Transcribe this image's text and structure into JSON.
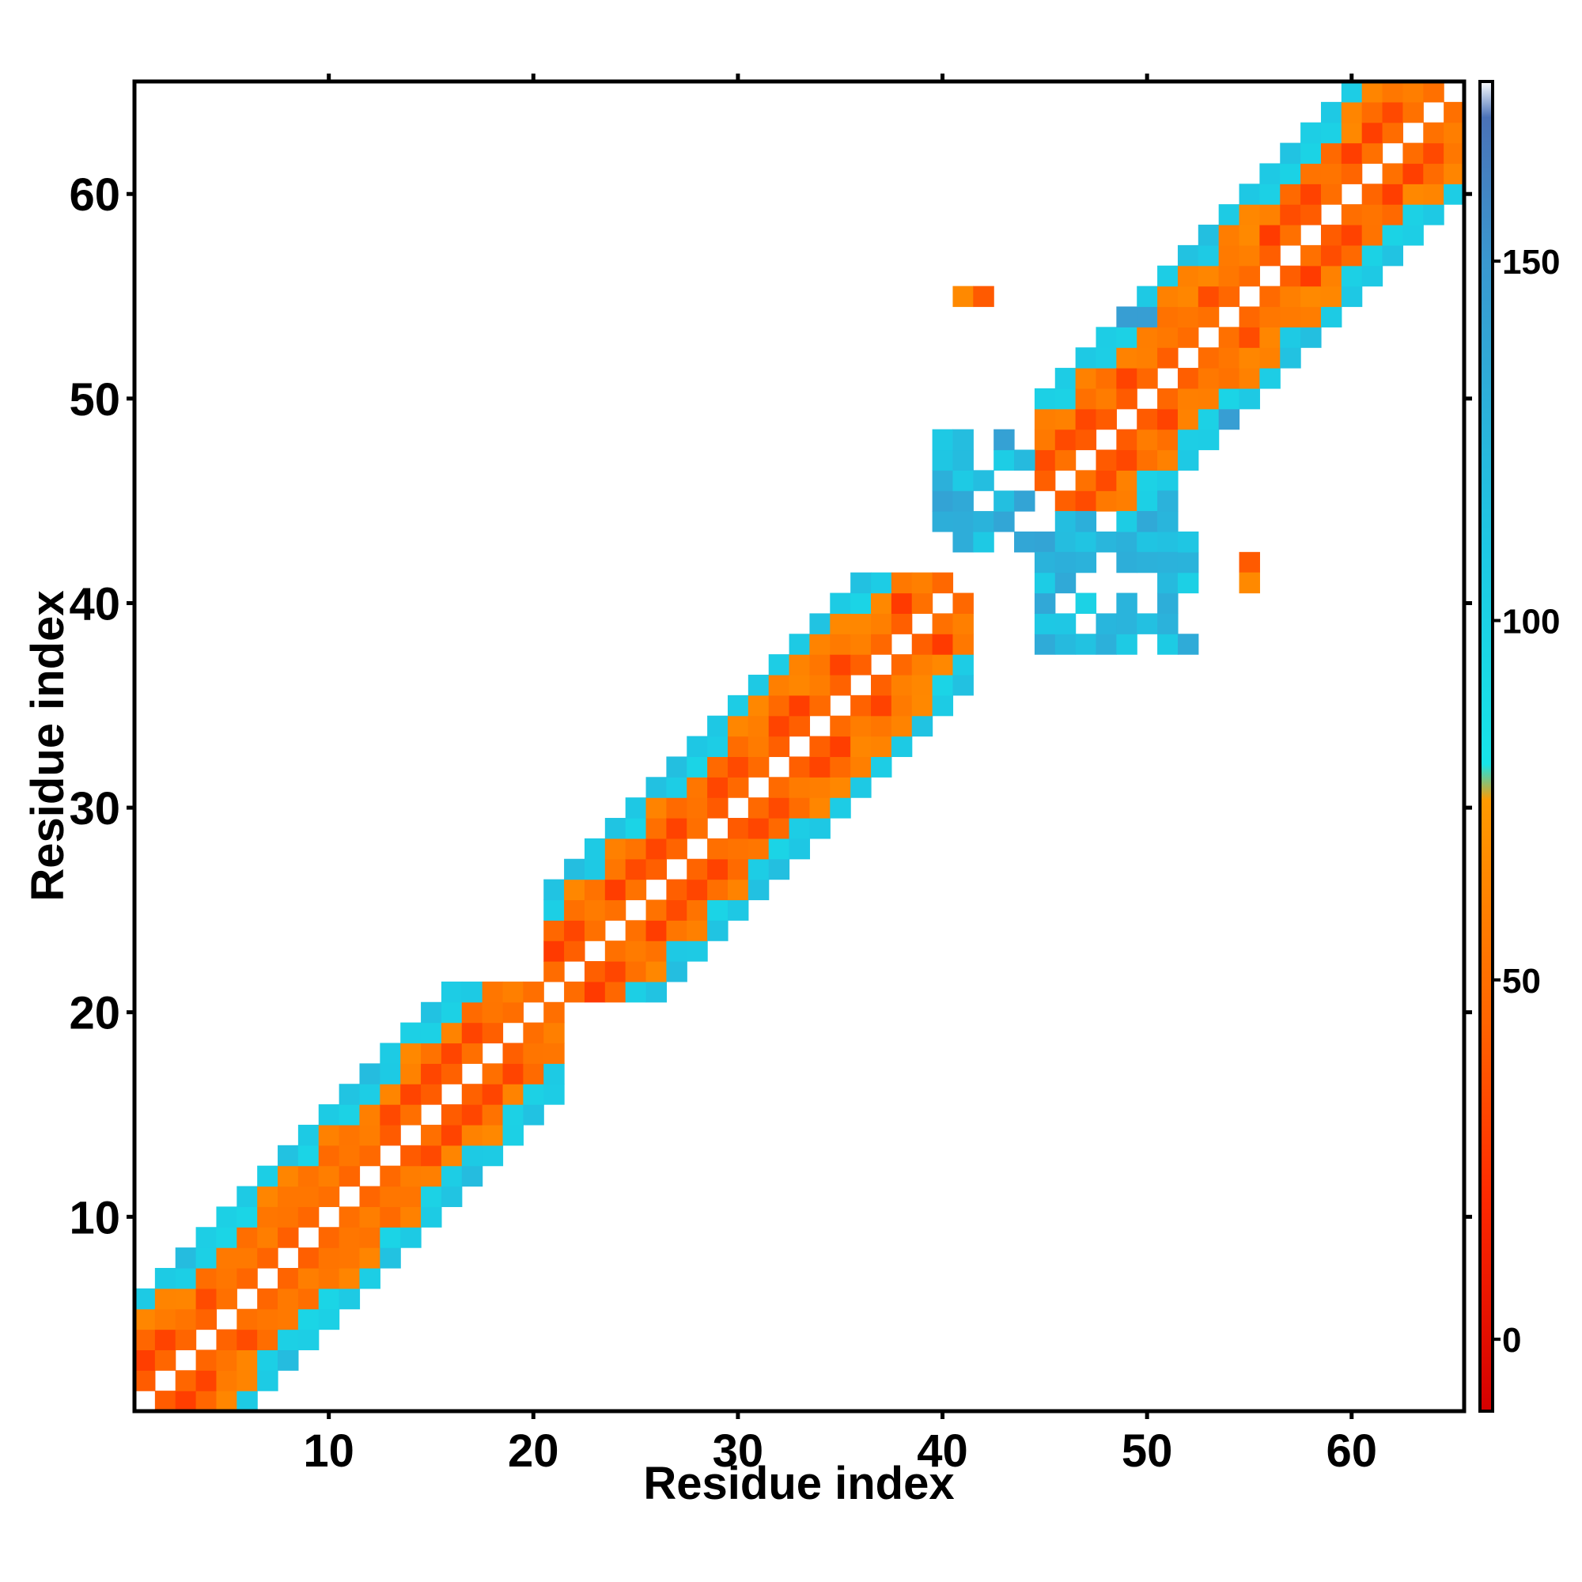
{
  "chart_data": {
    "type": "heatmap",
    "title": "",
    "xlabel": "Residue index",
    "ylabel": "Residue index",
    "n": 65,
    "xlim": [
      0.5,
      65.5
    ],
    "ylim": [
      0.5,
      65.5
    ],
    "xticks": [
      10,
      20,
      30,
      40,
      50,
      60
    ],
    "yticks": [
      10,
      20,
      30,
      40,
      50,
      60
    ],
    "grid": false,
    "colorbar": {
      "range": [
        -10,
        175
      ],
      "ticks": [
        0,
        50,
        100,
        150
      ],
      "stops": [
        {
          "value": -10,
          "color": "#d40000"
        },
        {
          "value": 20,
          "color": "#ff2a00"
        },
        {
          "value": 45,
          "color": "#ff6600"
        },
        {
          "value": 75,
          "color": "#ff9a00"
        },
        {
          "value": 80,
          "color": "#17e5e8"
        },
        {
          "value": 110,
          "color": "#1ec8e4"
        },
        {
          "value": 150,
          "color": "#3a98d0"
        },
        {
          "value": 170,
          "color": "#4a72b8"
        },
        {
          "value": 175,
          "color": "#ffffff"
        }
      ]
    },
    "helix_segments": [
      [
        1,
        21
      ],
      [
        21,
        41
      ],
      [
        45,
        65
      ]
    ],
    "beta_pairs": [
      {
        "i": [
          40,
          51
        ],
        "j": [
          43,
          48
        ],
        "value": 125
      },
      {
        "i": [
          45,
          52
        ],
        "j": [
          38,
          43
        ],
        "value": 120
      }
    ],
    "isolated_cells": [
      {
        "x": 41,
        "y": 55,
        "value": 65
      },
      {
        "x": 42,
        "y": 55,
        "value": 40
      },
      {
        "x": 55,
        "y": 42,
        "value": 40
      },
      {
        "x": 55,
        "y": 41,
        "value": 65
      },
      {
        "x": 49,
        "y": 54,
        "value": 145
      },
      {
        "x": 50,
        "y": 54,
        "value": 145
      },
      {
        "x": 54,
        "y": 49,
        "value": 145
      }
    ]
  }
}
